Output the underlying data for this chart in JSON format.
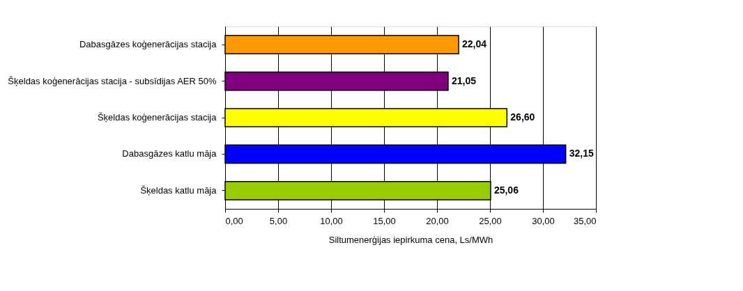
{
  "chart_data": {
    "type": "bar",
    "orientation": "horizontal",
    "categories": [
      "Dabasgāzes koģenerācijas stacija",
      "Šķeldas koģenerācijas stacija - subsīdijas AER 50%",
      "Šķeldas koģenerācijas stacija",
      "Dabasgāzes katlu māja",
      "Šķeldas katlu māja"
    ],
    "values": [
      22.04,
      21.05,
      26.6,
      32.15,
      25.06
    ],
    "colors": [
      "#ff9900",
      "#800080",
      "#ffff00",
      "#0000ff",
      "#99cc00"
    ],
    "value_labels": [
      "22,04",
      "21,05",
      "26,60",
      "32,15",
      "25,06"
    ],
    "xlabel": "Siltumenerģijas iepirkuma cena, Ls/MWh",
    "xlim": [
      0,
      35
    ],
    "xticks": [
      {
        "value": 0,
        "label": "0,00"
      },
      {
        "value": 5,
        "label": "5,00"
      },
      {
        "value": 10,
        "label": "10,00"
      },
      {
        "value": 15,
        "label": "15,00"
      },
      {
        "value": 20,
        "label": "20,00"
      },
      {
        "value": 25,
        "label": "25,00"
      },
      {
        "value": 30,
        "label": "30,00"
      },
      {
        "value": 35,
        "label": "35,00"
      }
    ],
    "grid": "x"
  }
}
